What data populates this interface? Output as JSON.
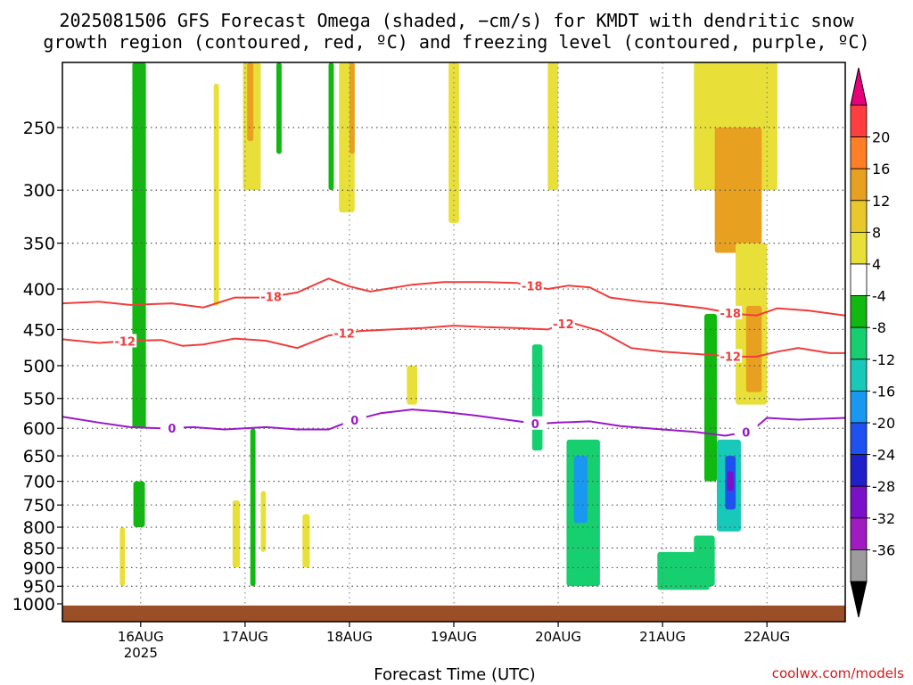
{
  "title_line1": "2025081506 GFS Forecast Omega (shaded, −cm/s) for KMDT with dendritic snow",
  "title_line2": "growth region (contoured, red, ºC) and freezing level (contoured, purple, ºC)",
  "xlabel": "Forecast Time (UTC)",
  "credit": "coolwx.com/models",
  "chart_data": {
    "type": "heatmap",
    "title": "2025081506 GFS Forecast Omega (shaded, −cm/s) for KMDT with dendritic snow growth region (contoured, red, ºC) and freezing level (contoured, purple, ºC)",
    "xlabel": "Forecast Time (UTC)",
    "ylabel": "",
    "y_axis": {
      "scale": "pressure (reversed)",
      "range": [
        1000,
        200
      ],
      "ticks": [
        250,
        300,
        350,
        400,
        450,
        500,
        550,
        600,
        650,
        700,
        750,
        800,
        850,
        900,
        950,
        1000
      ]
    },
    "x_axis": {
      "range_days": [
        15.25,
        22.75
      ],
      "ticks": [
        {
          "day": 16,
          "label": "16AUG",
          "sublabel": "2025"
        },
        {
          "day": 17,
          "label": "17AUG",
          "sublabel": ""
        },
        {
          "day": 18,
          "label": "18AUG",
          "sublabel": ""
        },
        {
          "day": 19,
          "label": "19AUG",
          "sublabel": ""
        },
        {
          "day": 20,
          "label": "20AUG",
          "sublabel": ""
        },
        {
          "day": 21,
          "label": "21AUG",
          "sublabel": ""
        },
        {
          "day": 22,
          "label": "22AUG",
          "sublabel": ""
        }
      ]
    },
    "grid": true,
    "colorbar": {
      "labels": [
        "20",
        "16",
        "12",
        "8",
        "4",
        "-4",
        "-8",
        "-12",
        "-16",
        "-20",
        "-24",
        "-28",
        "-32",
        "-36"
      ],
      "colors": [
        "#ff3f3f",
        "#ff7f27",
        "#e8a020",
        "#e8c82a",
        "#e8e038",
        "#ffffff",
        "#10b810",
        "#16d070",
        "#18c8b8",
        "#1898f0",
        "#1f50f0",
        "#2020c8",
        "#7a10c8",
        "#a01cc0",
        "#9c9c9c"
      ],
      "top_arrow": "#e8007a",
      "bottom_arrow": "#000000"
    },
    "contour_labels": {
      "dgz_upper": "-18",
      "dgz_lower": "-12",
      "freezing": "0"
    },
    "dgz_upper_18C": [
      [
        15.25,
        417
      ],
      [
        15.6,
        415
      ],
      [
        15.9,
        419
      ],
      [
        16.3,
        417
      ],
      [
        16.6,
        422
      ],
      [
        16.9,
        410
      ],
      [
        17.2,
        410
      ],
      [
        17.5,
        404
      ],
      [
        17.8,
        388
      ],
      [
        18.0,
        397
      ],
      [
        18.2,
        403
      ],
      [
        18.6,
        395
      ],
      [
        18.9,
        392
      ],
      [
        19.3,
        392
      ],
      [
        19.6,
        393
      ],
      [
        19.9,
        400
      ],
      [
        20.1,
        396
      ],
      [
        20.3,
        398
      ],
      [
        20.5,
        410
      ],
      [
        20.8,
        415
      ],
      [
        21.0,
        417
      ],
      [
        21.4,
        423
      ],
      [
        21.7,
        430
      ],
      [
        21.9,
        432
      ],
      [
        22.1,
        423
      ],
      [
        22.4,
        426
      ],
      [
        22.75,
        432
      ]
    ],
    "dgz_lower_12C": [
      [
        15.25,
        463
      ],
      [
        15.6,
        468
      ],
      [
        15.9,
        465
      ],
      [
        16.2,
        464
      ],
      [
        16.4,
        472
      ],
      [
        16.6,
        470
      ],
      [
        16.9,
        462
      ],
      [
        17.2,
        465
      ],
      [
        17.5,
        475
      ],
      [
        17.8,
        458
      ],
      [
        18.1,
        452
      ],
      [
        18.4,
        450
      ],
      [
        18.7,
        448
      ],
      [
        19.0,
        445
      ],
      [
        19.3,
        447
      ],
      [
        19.6,
        448
      ],
      [
        19.9,
        450
      ],
      [
        20.1,
        440
      ],
      [
        20.4,
        452
      ],
      [
        20.7,
        475
      ],
      [
        21.0,
        480
      ],
      [
        21.4,
        484
      ],
      [
        21.7,
        487
      ],
      [
        21.9,
        487
      ],
      [
        22.1,
        480
      ],
      [
        22.3,
        475
      ],
      [
        22.6,
        482
      ],
      [
        22.75,
        482
      ]
    ],
    "freezing_level_0C": [
      [
        15.25,
        580
      ],
      [
        15.6,
        590
      ],
      [
        15.9,
        598
      ],
      [
        16.2,
        600
      ],
      [
        16.5,
        598
      ],
      [
        16.8,
        602
      ],
      [
        17.2,
        598
      ],
      [
        17.5,
        602
      ],
      [
        17.8,
        602
      ],
      [
        18.0,
        588
      ],
      [
        18.3,
        574
      ],
      [
        18.6,
        568
      ],
      [
        18.9,
        572
      ],
      [
        19.2,
        578
      ],
      [
        19.5,
        585
      ],
      [
        19.8,
        592
      ],
      [
        20.0,
        590
      ],
      [
        20.3,
        588
      ],
      [
        20.6,
        596
      ],
      [
        21.0,
        602
      ],
      [
        21.3,
        606
      ],
      [
        21.6,
        613
      ],
      [
        21.85,
        605
      ],
      [
        22.0,
        582
      ],
      [
        22.3,
        585
      ],
      [
        22.75,
        582
      ]
    ],
    "omega_features": [
      {
        "day_start": 15.92,
        "day_end": 16.05,
        "p_top": 200,
        "p_bottom": 600,
        "value": -6
      },
      {
        "day_start": 15.93,
        "day_end": 16.04,
        "p_top": 700,
        "p_bottom": 800,
        "value": -6
      },
      {
        "day_start": 17.05,
        "day_end": 17.1,
        "p_top": 600,
        "p_bottom": 950,
        "value": -6
      },
      {
        "day_start": 19.75,
        "day_end": 19.85,
        "p_top": 470,
        "p_bottom": 640,
        "value": -10
      },
      {
        "day_start": 20.08,
        "day_end": 20.4,
        "p_top": 620,
        "p_bottom": 950,
        "value": -10
      },
      {
        "day_start": 20.15,
        "day_end": 20.28,
        "p_top": 650,
        "p_bottom": 790,
        "value": -16
      },
      {
        "day_start": 20.95,
        "day_end": 21.45,
        "p_top": 860,
        "p_bottom": 960,
        "value": -8
      },
      {
        "day_start": 21.3,
        "day_end": 21.5,
        "p_top": 820,
        "p_bottom": 950,
        "value": -10
      },
      {
        "day_start": 21.4,
        "day_end": 21.52,
        "p_top": 430,
        "p_bottom": 700,
        "value": -6
      },
      {
        "day_start": 21.52,
        "day_end": 21.75,
        "p_top": 620,
        "p_bottom": 810,
        "value": -12
      },
      {
        "day_start": 21.6,
        "day_end": 21.7,
        "p_top": 650,
        "p_bottom": 760,
        "value": -20
      },
      {
        "day_start": 21.62,
        "day_end": 21.68,
        "p_top": 680,
        "p_bottom": 720,
        "value": -28
      },
      {
        "day_start": 21.3,
        "day_end": 22.1,
        "p_top": 200,
        "p_bottom": 300,
        "value": 6
      },
      {
        "day_start": 21.5,
        "day_end": 21.95,
        "p_top": 250,
        "p_bottom": 360,
        "value": 9
      },
      {
        "day_start": 21.7,
        "day_end": 22.0,
        "p_top": 350,
        "p_bottom": 560,
        "value": 6
      },
      {
        "day_start": 21.8,
        "day_end": 21.95,
        "p_top": 420,
        "p_bottom": 540,
        "value": 9
      },
      {
        "day_start": 16.98,
        "day_end": 17.15,
        "p_top": 200,
        "p_bottom": 300,
        "value": 6
      },
      {
        "day_start": 17.02,
        "day_end": 17.08,
        "p_top": 200,
        "p_bottom": 260,
        "value": 9
      },
      {
        "day_start": 17.9,
        "day_end": 18.05,
        "p_top": 200,
        "p_bottom": 320,
        "value": 6
      },
      {
        "day_start": 18.0,
        "day_end": 18.05,
        "p_top": 200,
        "p_bottom": 270,
        "value": 9
      },
      {
        "day_start": 18.95,
        "day_end": 19.05,
        "p_top": 200,
        "p_bottom": 330,
        "value": 5
      },
      {
        "day_start": 19.9,
        "day_end": 20.0,
        "p_top": 200,
        "p_bottom": 300,
        "value": 5
      },
      {
        "day_start": 17.3,
        "day_end": 17.35,
        "p_top": 200,
        "p_bottom": 270,
        "value": -6
      },
      {
        "day_start": 17.8,
        "day_end": 17.85,
        "p_top": 200,
        "p_bottom": 300,
        "value": -6
      },
      {
        "day_start": 16.7,
        "day_end": 16.75,
        "p_top": 220,
        "p_bottom": 420,
        "value": 5
      },
      {
        "day_start": 18.55,
        "day_end": 18.65,
        "p_top": 500,
        "p_bottom": 560,
        "value": 5
      },
      {
        "day_start": 16.88,
        "day_end": 16.95,
        "p_top": 740,
        "p_bottom": 900,
        "value": 5
      },
      {
        "day_start": 17.15,
        "day_end": 17.2,
        "p_top": 720,
        "p_bottom": 860,
        "value": 5
      },
      {
        "day_start": 17.55,
        "day_end": 17.62,
        "p_top": 770,
        "p_bottom": 900,
        "value": 5
      },
      {
        "day_start": 15.8,
        "day_end": 15.85,
        "p_top": 800,
        "p_bottom": 950,
        "value": 5
      }
    ],
    "ground_band": {
      "p_top": 1005,
      "color": "#9b4f28"
    }
  }
}
